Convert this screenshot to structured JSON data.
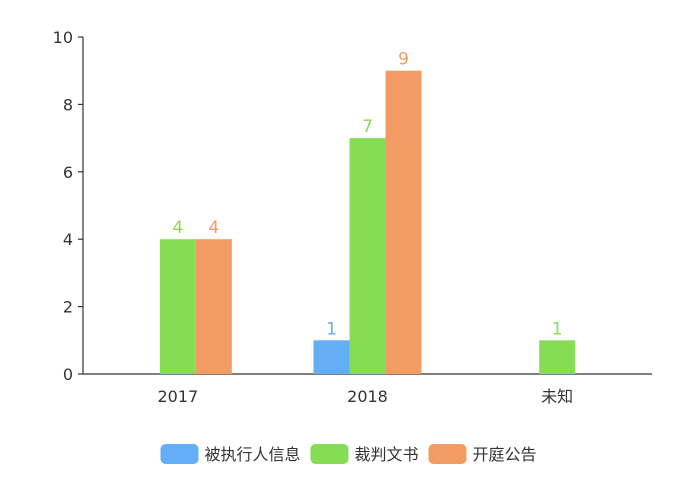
{
  "chart_data": {
    "type": "bar",
    "title": "",
    "xlabel": "",
    "ylabel": "",
    "categories": [
      "2017",
      "2018",
      "未知"
    ],
    "ylim": [
      0,
      10
    ],
    "yticks": [
      0,
      2,
      4,
      6,
      8,
      10
    ],
    "grid": false,
    "legend_position": "bottom-center",
    "series": [
      {
        "name": "被执行人信息",
        "color": "#63aef7",
        "values": [
          null,
          1,
          null
        ]
      },
      {
        "name": "裁判文书",
        "color": "#86dd55",
        "values": [
          4,
          7,
          1
        ]
      },
      {
        "name": "开庭公告",
        "color": "#f29c63",
        "values": [
          4,
          9,
          null
        ]
      }
    ]
  }
}
